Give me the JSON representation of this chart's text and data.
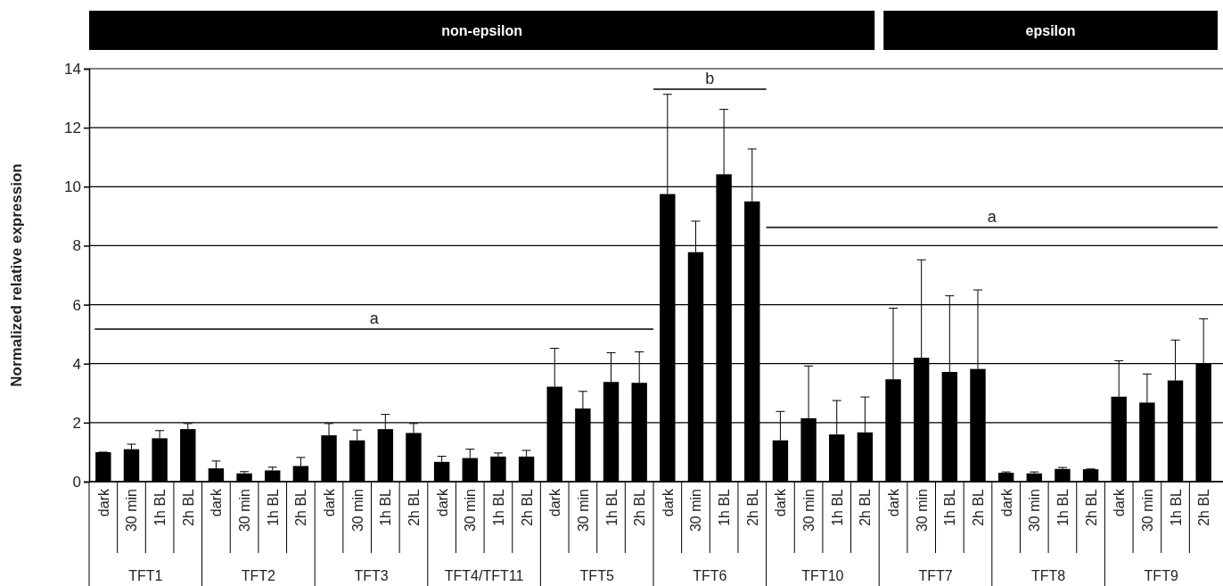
{
  "chart_data": {
    "type": "bar",
    "ylabel": "Normalized relative expression",
    "categories": [
      "dark",
      "30 min",
      "1h BL",
      "2h BL",
      "dark",
      "30 min",
      "1h BL",
      "2h BL",
      "dark",
      "30 min",
      "1h BL",
      "2h BL",
      "dark",
      "30 min",
      "1h BL",
      "2h BL",
      "dark",
      "30 min",
      "1h BL",
      "2h BL",
      "dark",
      "30 min",
      "1h BL",
      "2h BL",
      "dark",
      "30 min",
      "1h BL",
      "2h BL",
      "dark",
      "30 min",
      "1h BL",
      "2h BL",
      "dark",
      "30 min",
      "1h BL",
      "2h BL",
      "dark",
      "30 min",
      "1h BL",
      "2h BL"
    ],
    "values": [
      1.0,
      1.1,
      1.47,
      1.78,
      0.45,
      0.28,
      0.38,
      0.53,
      1.57,
      1.4,
      1.78,
      1.65,
      0.67,
      0.8,
      0.85,
      0.85,
      3.22,
      2.48,
      3.38,
      3.35,
      9.75,
      7.78,
      10.42,
      9.5,
      1.4,
      2.15,
      1.6,
      1.67,
      3.47,
      4.2,
      3.72,
      3.82,
      0.3,
      0.28,
      0.43,
      0.42,
      2.88,
      2.68,
      3.43,
      4.02
    ],
    "errors": [
      [
        1.0,
        1.0
      ],
      [
        1.1,
        1.27
      ],
      [
        1.47,
        1.73
      ],
      [
        1.78,
        1.97
      ],
      [
        0.45,
        0.7
      ],
      [
        0.28,
        0.34
      ],
      [
        0.38,
        0.49
      ],
      [
        0.53,
        0.82
      ],
      [
        1.57,
        1.97
      ],
      [
        1.4,
        1.75
      ],
      [
        1.78,
        2.28
      ],
      [
        1.65,
        1.97
      ],
      [
        0.67,
        0.86
      ],
      [
        0.8,
        1.1
      ],
      [
        0.85,
        0.97
      ],
      [
        0.85,
        1.06
      ],
      [
        3.22,
        4.52
      ],
      [
        2.48,
        3.06
      ],
      [
        3.38,
        4.37
      ],
      [
        3.35,
        4.4
      ],
      [
        9.75,
        13.13
      ],
      [
        7.78,
        8.83
      ],
      [
        10.42,
        12.62
      ],
      [
        9.5,
        11.28
      ],
      [
        1.4,
        2.38
      ],
      [
        2.15,
        3.92
      ],
      [
        1.6,
        2.75
      ],
      [
        1.67,
        2.87
      ],
      [
        3.47,
        5.88
      ],
      [
        4.2,
        7.52
      ],
      [
        3.72,
        6.3
      ],
      [
        3.82,
        6.5
      ],
      [
        0.3,
        0.33
      ],
      [
        0.28,
        0.33
      ],
      [
        0.43,
        0.48
      ],
      [
        0.42,
        0.43
      ],
      [
        2.88,
        4.1
      ],
      [
        2.68,
        3.65
      ],
      [
        3.43,
        4.8
      ],
      [
        4.02,
        5.52
      ]
    ],
    "color": "#000000",
    "ylim": [
      0,
      14
    ],
    "yticks": [
      0,
      2,
      4,
      6,
      8,
      10,
      12,
      14
    ],
    "grid": "y",
    "annotations": [
      "TFT1",
      "TFT2",
      "TFT3",
      "TFT4/TFT11",
      "TFT5",
      "TFT6",
      "TFT10",
      "TFT7",
      "TFT8",
      "TFT9",
      "non-epsilon",
      "epsilon",
      "a",
      "b",
      "a"
    ]
  }
}
